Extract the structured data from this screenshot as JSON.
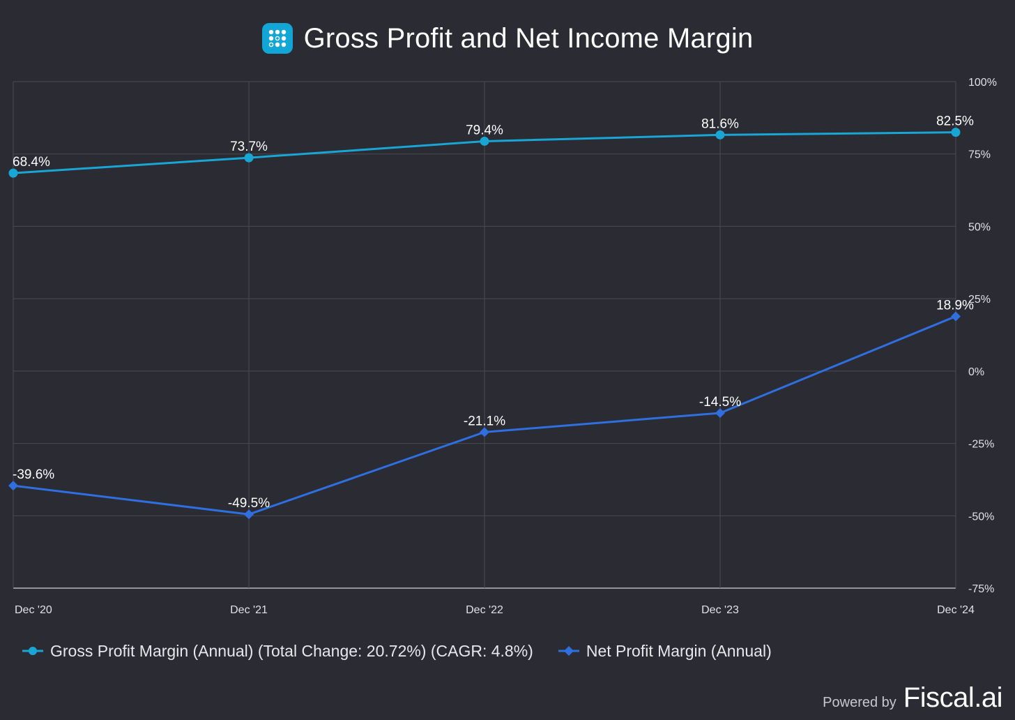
{
  "header": {
    "title": "Gross Profit and Net Income Margin",
    "icon": "fiscal-ai-logo-icon"
  },
  "colors": {
    "background": "#2a2b33",
    "grid": "#4a4b55",
    "gross": "#1aa6d4",
    "net": "#2f6fe0",
    "tick": "#e2e2e6"
  },
  "chart_data": {
    "type": "line",
    "title": "Gross Profit and Net Income Margin",
    "categories": [
      "Dec '20",
      "Dec '21",
      "Dec '22",
      "Dec '23",
      "Dec '24"
    ],
    "y_ticks": [
      "100%",
      "75%",
      "50%",
      "25%",
      "0%",
      "-25%",
      "-50%",
      "-75%"
    ],
    "y_tick_values": [
      100,
      75,
      50,
      25,
      0,
      -25,
      -50,
      -75
    ],
    "ylim": [
      -75,
      100
    ],
    "y_axis_side": "right",
    "grid": true,
    "legend_position": "bottom",
    "series": [
      {
        "name": "Gross Profit Margin (Annual) (Total Change: 20.72%) (CAGR: 4.8%)",
        "marker": "circle",
        "values": [
          68.4,
          73.7,
          79.4,
          81.6,
          82.5
        ],
        "labels": [
          "68.4%",
          "73.7%",
          "79.4%",
          "81.6%",
          "82.5%"
        ]
      },
      {
        "name": "Net Profit Margin (Annual)",
        "marker": "diamond",
        "values": [
          -39.6,
          -49.5,
          -21.1,
          -14.5,
          18.9
        ],
        "labels": [
          "-39.6%",
          "-49.5%",
          "-21.1%",
          "-14.5%",
          "18.9%"
        ]
      }
    ]
  },
  "footer": {
    "powered_by": "Powered by",
    "brand": "Fiscal.ai"
  }
}
